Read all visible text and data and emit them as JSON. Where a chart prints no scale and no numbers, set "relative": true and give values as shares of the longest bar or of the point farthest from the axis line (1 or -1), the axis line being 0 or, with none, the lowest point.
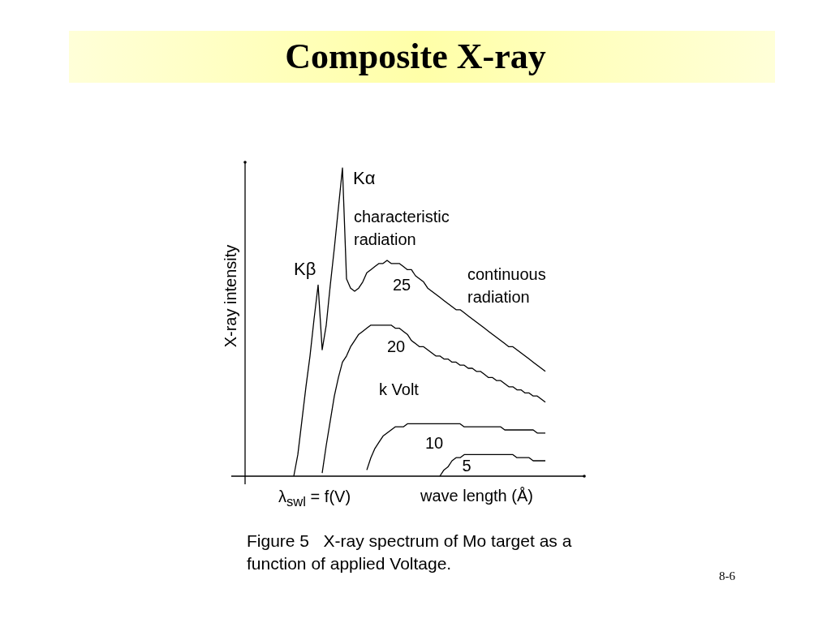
{
  "chart_data": {
    "type": "line",
    "title": "Composite X-ray",
    "xlabel": "wave length (Å)",
    "ylabel": "X-ray intensity",
    "relative": true,
    "marker": "none",
    "line_style": "solid",
    "grid": false,
    "categories": [
      null,
      null,
      null,
      null,
      null,
      null,
      null,
      null,
      null,
      null,
      null,
      null,
      null,
      null,
      null,
      null,
      null,
      null,
      null,
      null,
      null,
      null,
      null,
      null,
      null,
      null,
      null,
      null,
      null,
      null,
      null,
      null,
      null,
      null,
      null,
      null,
      null,
      null,
      null,
      null,
      null,
      null,
      null,
      null,
      null,
      null,
      null,
      null,
      null,
      null,
      null,
      null,
      null,
      null,
      null,
      null,
      null,
      null,
      null,
      null,
      null,
      null,
      null,
      null,
      null,
      null,
      null,
      null,
      null,
      null,
      null,
      null,
      null,
      null,
      null,
      null,
      null,
      null,
      null,
      null,
      null,
      null,
      null,
      null
    ],
    "series": [
      {
        "name": "25",
        "color": "#000000",
        "values": [
          null,
          null,
          null,
          null,
          null,
          null,
          null,
          null,
          null,
          null,
          null,
          null,
          0,
          0.07,
          0.18,
          0.29,
          0.39,
          0.51,
          0.62,
          0.41,
          0.49,
          0.62,
          0.74,
          0.87,
          1,
          0.64,
          0.61,
          0.6,
          0.61,
          0.63,
          0.66,
          0.67,
          0.68,
          0.69,
          0.69,
          0.7,
          0.69,
          0.69,
          0.69,
          0.68,
          0.67,
          0.67,
          0.65,
          0.64,
          0.63,
          0.61,
          0.6,
          0.59,
          0.58,
          0.57,
          0.56,
          0.55,
          0.54,
          0.54,
          0.53,
          0.52,
          0.51,
          0.5,
          0.49,
          0.48,
          0.47,
          0.46,
          0.45,
          0.44,
          0.43,
          0.42,
          0.42,
          0.41,
          0.4,
          0.39,
          0.38,
          0.37,
          0.36,
          0.35,
          0.34,
          null,
          null,
          null,
          null,
          null,
          null,
          null,
          null,
          null
        ]
      },
      {
        "name": "20",
        "color": "#000000",
        "values": [
          null,
          null,
          null,
          null,
          null,
          null,
          null,
          null,
          null,
          null,
          null,
          null,
          null,
          null,
          null,
          null,
          null,
          null,
          null,
          0.01,
          0.1,
          0.18,
          0.26,
          0.32,
          0.37,
          0.39,
          0.42,
          0.44,
          0.46,
          0.47,
          0.48,
          0.49,
          0.49,
          0.49,
          0.49,
          0.49,
          0.49,
          0.48,
          0.48,
          0.47,
          0.46,
          0.44,
          0.43,
          0.42,
          0.42,
          0.41,
          0.4,
          0.39,
          0.39,
          0.38,
          0.38,
          0.37,
          0.37,
          0.36,
          0.36,
          0.35,
          0.35,
          0.34,
          0.34,
          0.33,
          0.32,
          0.32,
          0.31,
          0.31,
          0.3,
          0.29,
          0.29,
          0.28,
          0.28,
          0.27,
          0.27,
          0.26,
          0.26,
          0.25,
          0.24,
          null,
          null,
          null,
          null,
          null,
          null,
          null,
          null,
          null
        ]
      },
      {
        "name": "10",
        "color": "#000000",
        "values": [
          null,
          null,
          null,
          null,
          null,
          null,
          null,
          null,
          null,
          null,
          null,
          null,
          null,
          null,
          null,
          null,
          null,
          null,
          null,
          null,
          null,
          null,
          null,
          null,
          null,
          null,
          null,
          null,
          null,
          null,
          0.02,
          0.06,
          0.09,
          0.11,
          0.13,
          0.14,
          0.15,
          0.16,
          0.16,
          0.16,
          0.17,
          0.17,
          0.17,
          0.17,
          0.17,
          0.17,
          0.17,
          0.17,
          0.17,
          0.17,
          0.17,
          0.17,
          0.17,
          0.17,
          0.16,
          0.16,
          0.16,
          0.16,
          0.16,
          0.16,
          0.16,
          0.16,
          0.16,
          0.16,
          0.15,
          0.15,
          0.15,
          0.15,
          0.15,
          0.15,
          0.15,
          0.15,
          0.14,
          0.14,
          0.14,
          null,
          null,
          null,
          null,
          null,
          null,
          null,
          null,
          null
        ]
      },
      {
        "name": "5",
        "color": "#000000",
        "values": [
          null,
          null,
          null,
          null,
          null,
          null,
          null,
          null,
          null,
          null,
          null,
          null,
          null,
          null,
          null,
          null,
          null,
          null,
          null,
          null,
          null,
          null,
          null,
          null,
          null,
          null,
          null,
          null,
          null,
          null,
          null,
          null,
          null,
          null,
          null,
          null,
          null,
          null,
          null,
          null,
          null,
          null,
          null,
          null,
          null,
          null,
          null,
          null,
          0,
          0.02,
          0.03,
          0.05,
          0.06,
          0.06,
          0.07,
          0.07,
          0.07,
          0.07,
          0.07,
          0.07,
          0.07,
          0.07,
          0.07,
          0.07,
          0.07,
          0.07,
          0.07,
          0.06,
          0.06,
          0.06,
          0.06,
          0.05,
          0.05,
          0.05,
          0.05,
          null,
          null,
          null,
          null,
          null,
          null,
          null,
          null,
          null
        ]
      }
    ],
    "annotations": [
      "Kα",
      "Kβ",
      "characteristic radiation",
      "continuous radiation",
      "k Volt",
      "λ$_{swl}$ = f(V)",
      "Figure 5   X-ray spectrum of Mo target as a function of applied Voltage.",
      "8-6"
    ]
  }
}
